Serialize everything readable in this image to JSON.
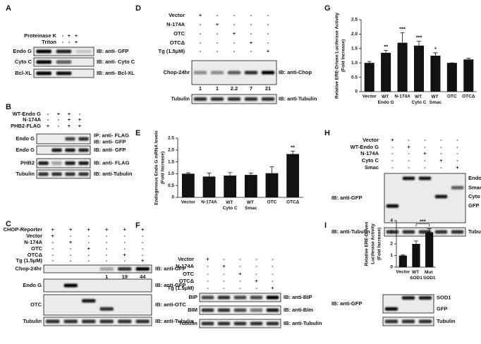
{
  "panels": [
    {
      "label": "A",
      "conditions": [
        {
          "name": "Proteinase K",
          "signs": [
            "-",
            "+",
            "+"
          ]
        },
        {
          "name": "Triton",
          "signs": [
            "-",
            "-",
            "+"
          ]
        }
      ],
      "blots": [
        {
          "name": "Endo G",
          "probe": "IB: anti- GFP"
        },
        {
          "name": "Cyto C",
          "probe": "IB: anti- Cyto C"
        },
        {
          "name": "Bcl-XL",
          "probe": "IB: anti- Bcl-XL"
        }
      ]
    },
    {
      "label": "B",
      "conditions": [
        {
          "name": "WT-Endo G",
          "signs": [
            "-",
            "+",
            "+",
            "-"
          ]
        },
        {
          "name": "N-174A",
          "signs": [
            "-",
            "-",
            "+",
            "+"
          ]
        },
        {
          "name": "PHB2-FLAG",
          "signs": [
            "+",
            "-",
            "+",
            "+"
          ]
        }
      ],
      "blots": [
        {
          "name": "Endo G",
          "probe": [
            "IP: anti- FLAG",
            "IB: anti- GFP"
          ]
        },
        {
          "name": "Endo G",
          "probe": "IB: anti- GFP"
        },
        {
          "name": "PHB2",
          "probe": "IB: anti- FLAG"
        },
        {
          "name": "Tubulin",
          "probe": "IB: anti-Tubulin"
        }
      ]
    },
    {
      "label": "C",
      "conditions": [
        {
          "name": "CHOP-Reporter",
          "signs": [
            "+",
            "+",
            "+",
            "+",
            "+",
            "+"
          ]
        },
        {
          "name": "Vector",
          "signs": [
            "+",
            "-",
            "-",
            "-",
            "-",
            "-"
          ]
        },
        {
          "name": "N-174A",
          "signs": [
            "-",
            "+",
            "-",
            "-",
            "-",
            "-"
          ]
        },
        {
          "name": "OTC",
          "signs": [
            "-",
            "-",
            "+",
            "-",
            "-",
            "-"
          ]
        },
        {
          "name": "OTCΔ",
          "signs": [
            "-",
            "-",
            "-",
            "-",
            "+",
            "-"
          ]
        },
        {
          "name": "Tg (1.5μM)",
          "signs": [
            "-",
            "-",
            "-",
            "-",
            "-",
            "+"
          ]
        }
      ],
      "blots": [
        {
          "name": "Chop-24hr",
          "probe": "IB: anti-GFP",
          "quant": [
            null,
            null,
            null,
            1,
            19,
            44
          ]
        },
        {
          "name": "Endo G",
          "probe": "IB: anti-GFP"
        },
        {
          "name": "OTC",
          "probe": "IB: anti-OTC"
        },
        {
          "name": "Tubulin",
          "probe": "IB: anti-Tubulin"
        }
      ]
    },
    {
      "label": "D",
      "conditions": [
        {
          "name": "Vector",
          "signs": [
            "+",
            "-",
            "-",
            "-",
            "-"
          ]
        },
        {
          "name": "N-174A",
          "signs": [
            "-",
            "+",
            "-",
            "-",
            "-"
          ]
        },
        {
          "name": "OTC",
          "signs": [
            "-",
            "-",
            "+",
            "-",
            "-"
          ]
        },
        {
          "name": "OTCΔ",
          "signs": [
            "-",
            "-",
            "-",
            "+",
            "-"
          ]
        },
        {
          "name": "Tg (1.5μM)",
          "signs": [
            "-",
            "-",
            "-",
            "-",
            "+"
          ]
        }
      ],
      "blots": [
        {
          "name": "Chop-24hr",
          "probe": "IB: anti-Chop",
          "quant": [
            1,
            1,
            2.2,
            7,
            21
          ]
        },
        {
          "name": "Tubulin",
          "probe": "IB: anti-Tubulin"
        }
      ]
    },
    {
      "label": "F",
      "conditions": [
        {
          "name": "Vector",
          "signs": [
            "+",
            "-",
            "-",
            "-",
            "-"
          ]
        },
        {
          "name": "N-174A",
          "signs": [
            "-",
            "+",
            "-",
            "-",
            "-"
          ]
        },
        {
          "name": "OTC",
          "signs": [
            "-",
            "-",
            "+",
            "-",
            "-"
          ]
        },
        {
          "name": "OTCΔ",
          "signs": [
            "-",
            "-",
            "-",
            "+",
            "-"
          ]
        },
        {
          "name": "Tg (1.5μM)",
          "signs": [
            "-",
            "-",
            "-",
            "-",
            "+"
          ]
        }
      ],
      "blots": [
        {
          "name": "BIP",
          "probe": "IB: anti-BIP"
        },
        {
          "name": "BIM",
          "probe": "IB: anti-Bim"
        },
        {
          "name": "Tubulin",
          "probe": "IB: anti-Tubulin"
        }
      ]
    },
    {
      "label": "H",
      "conditions": [
        {
          "name": "Vector",
          "signs": [
            "+",
            "-",
            "-",
            "-",
            "-"
          ]
        },
        {
          "name": "WT-Endo G",
          "signs": [
            "-",
            "+",
            "-",
            "-",
            "-"
          ]
        },
        {
          "name": "N-174A",
          "signs": [
            "-",
            "-",
            "+",
            "-",
            "-"
          ]
        },
        {
          "name": "Cyto C",
          "signs": [
            "-",
            "-",
            "-",
            "+",
            "-"
          ]
        },
        {
          "name": "Smac",
          "signs": [
            "-",
            "-",
            "-",
            "-",
            "+"
          ]
        }
      ],
      "blots": [
        {
          "probe": "IB: anti-GFP",
          "band_labels": [
            "Endo G",
            "Smac",
            "Cyto C",
            "GFP"
          ]
        },
        {
          "name": "Tubulin",
          "probe": "IB: anti-Tubulin"
        }
      ]
    },
    {
      "label": "I",
      "blots": [
        {
          "probe": "IB: anti-GFP",
          "band_labels": [
            "SOD1",
            "GFP"
          ]
        },
        {
          "name": "Tubulin"
        }
      ]
    }
  ],
  "chart_data": [
    {
      "type": "bar",
      "panel": "E",
      "y_label": [
        "Endogenous Endo G mRNA levels",
        "(Fold Increase)"
      ],
      "categories": [
        "Vector",
        "N-174A",
        "WT Cyto C",
        "WT Smac",
        "OTC",
        "OTCΔ"
      ],
      "values": [
        1.0,
        0.88,
        0.92,
        0.95,
        1.02,
        1.83
      ],
      "errors": [
        0.04,
        0.15,
        0.13,
        0.08,
        0.27,
        0.12
      ],
      "significance": [
        null,
        null,
        null,
        null,
        null,
        "**"
      ],
      "color": "#111111",
      "ylim": [
        0,
        2.5
      ],
      "yticks": [
        0,
        0.5,
        {
          "value": 1,
          "label": "1.0"
        },
        1.5,
        {
          "value": 2,
          "label": "2.0"
        },
        2.5
      ]
    },
    {
      "type": "bar",
      "panel": "G",
      "y_label": [
        "Relative ERE-Driven Luciferase Activity",
        "(Fold Increase)"
      ],
      "categories": [
        "Vector",
        "WT Endo G",
        "N-174A",
        "WT Cyto C",
        "WT Smac",
        "OTC",
        "OTCΔ"
      ],
      "values": [
        1.0,
        1.35,
        1.7,
        1.6,
        1.25,
        1.0,
        1.12
      ],
      "errors": [
        0.05,
        0.08,
        0.35,
        0.15,
        0.1,
        0,
        0.04
      ],
      "significance": [
        null,
        "**",
        "***",
        "***",
        "*",
        null,
        null
      ],
      "color": "#111111",
      "ylim": [
        0,
        2.5
      ],
      "yticks": [
        0,
        0.5,
        {
          "value": 1,
          "label": "1.0"
        },
        1.5,
        {
          "value": 2,
          "label": "2.0"
        },
        2.5
      ]
    },
    {
      "type": "bar",
      "y_label": [
        "Relative ERE-Driven",
        "Luciferase Activity",
        "(Fold Increase)"
      ],
      "categories": [
        "Vector",
        "WT SOD1",
        "Mut SOD1"
      ],
      "values": [
        1.0,
        2.0,
        3.0
      ],
      "errors": [
        0.05,
        0.25,
        0.3
      ],
      "significance": [
        null,
        null,
        "***"
      ],
      "color": "#111111",
      "ylim": [
        0,
        4
      ],
      "yticks": [
        0,
        1,
        2,
        3,
        4
      ]
    }
  ]
}
